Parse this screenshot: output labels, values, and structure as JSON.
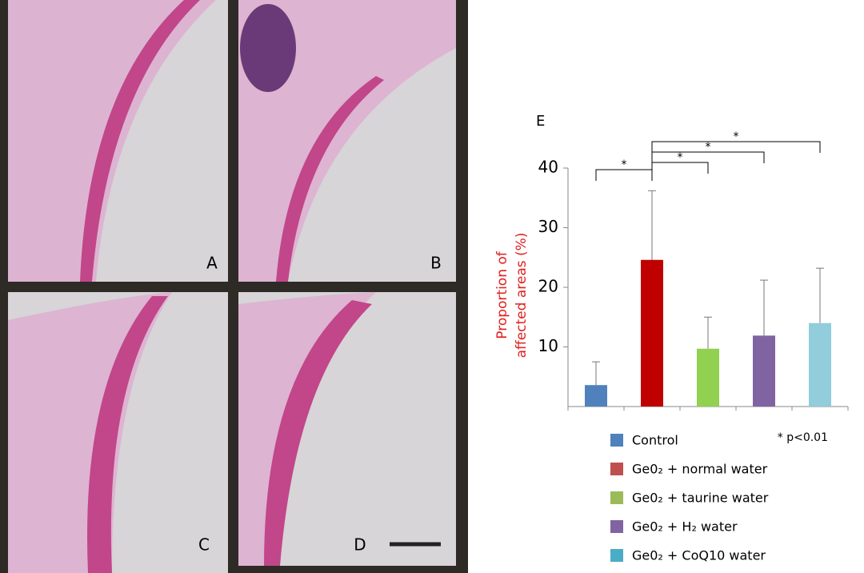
{
  "panels": [
    "A",
    "B",
    "C",
    "D"
  ],
  "chart_data": {
    "type": "bar",
    "panel_label": "E",
    "ylabel": [
      "Proportion of",
      "affected areas (%)"
    ],
    "categories": [
      "Control",
      "Ge0₂ + normal water",
      "Ge0₂ + taurine water",
      "Ge0₂ + H₂ water",
      "Ge0₂ + CoQ10 water"
    ],
    "colors": [
      "#4f81bd",
      "#c00000",
      "#92d050",
      "#8064a2",
      "#92cddc"
    ],
    "legend_colors": [
      "#4f81bd",
      "#c0504d",
      "#9bbb59",
      "#8064a2",
      "#4bacc6"
    ],
    "values": [
      3.6,
      24.6,
      9.7,
      11.9,
      14.0
    ],
    "errors": [
      3.9,
      11.6,
      5.3,
      9.3,
      9.2
    ],
    "ylim": [
      0,
      40
    ],
    "yticks": [
      10,
      20,
      30,
      40
    ],
    "significance": [
      {
        "from": 0,
        "to": 1,
        "label": "*"
      },
      {
        "from": 1,
        "to": 2,
        "label": "*"
      },
      {
        "from": 1,
        "to": 3,
        "label": "*"
      },
      {
        "from": 1,
        "to": 4,
        "label": "*"
      }
    ],
    "note": "* p<0.01"
  }
}
